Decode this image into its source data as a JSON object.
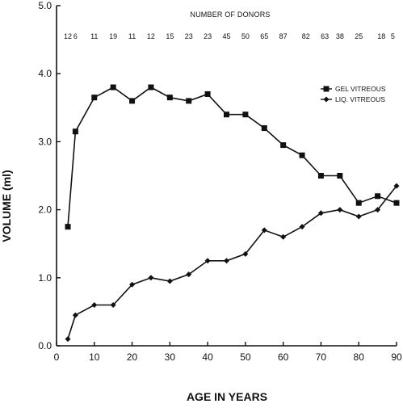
{
  "chart_data": {
    "type": "line",
    "xlabel": "AGE IN YEARS",
    "ylabel": "VOLUME (ml)",
    "xlim": [
      0,
      90
    ],
    "ylim": [
      0,
      5
    ],
    "xticks": [
      "0",
      "10",
      "20",
      "30",
      "40",
      "50",
      "60",
      "70",
      "80",
      "90"
    ],
    "yticks": [
      "0.0",
      "1.0",
      "2.0",
      "3.0",
      "4.0",
      "5.0"
    ],
    "grid": false,
    "legend_position": "right",
    "top_label": "NUMBER OF DONORS",
    "donors": [
      {
        "x": 3,
        "n": "12"
      },
      {
        "x": 5,
        "n": "6"
      },
      {
        "x": 10,
        "n": "11"
      },
      {
        "x": 15,
        "n": "19"
      },
      {
        "x": 20,
        "n": "11"
      },
      {
        "x": 25,
        "n": "12"
      },
      {
        "x": 30,
        "n": "15"
      },
      {
        "x": 35,
        "n": "23"
      },
      {
        "x": 40,
        "n": "23"
      },
      {
        "x": 45,
        "n": "45"
      },
      {
        "x": 50,
        "n": "50"
      },
      {
        "x": 55,
        "n": "65"
      },
      {
        "x": 60,
        "n": "87"
      },
      {
        "x": 66,
        "n": "82"
      },
      {
        "x": 71,
        "n": "63"
      },
      {
        "x": 75,
        "n": "38"
      },
      {
        "x": 80,
        "n": "25"
      },
      {
        "x": 86,
        "n": "18"
      },
      {
        "x": 89,
        "n": "5"
      }
    ],
    "series": [
      {
        "name": "GEL VITREOUS",
        "marker": "square",
        "points": [
          [
            3,
            1.75
          ],
          [
            5,
            3.15
          ],
          [
            10,
            3.65
          ],
          [
            15,
            3.8
          ],
          [
            20,
            3.6
          ],
          [
            25,
            3.8
          ],
          [
            30,
            3.65
          ],
          [
            35,
            3.6
          ],
          [
            40,
            3.7
          ],
          [
            45,
            3.4
          ],
          [
            50,
            3.4
          ],
          [
            55,
            3.2
          ],
          [
            60,
            2.95
          ],
          [
            65,
            2.8
          ],
          [
            70,
            2.5
          ],
          [
            75,
            2.5
          ],
          [
            80,
            2.1
          ],
          [
            85,
            2.2
          ],
          [
            90,
            2.1
          ]
        ]
      },
      {
        "name": "LIQ. VITREOUS",
        "marker": "diamond",
        "points": [
          [
            3,
            0.1
          ],
          [
            5,
            0.45
          ],
          [
            10,
            0.6
          ],
          [
            15,
            0.6
          ],
          [
            20,
            0.9
          ],
          [
            25,
            1.0
          ],
          [
            30,
            0.95
          ],
          [
            35,
            1.05
          ],
          [
            40,
            1.25
          ],
          [
            45,
            1.25
          ],
          [
            50,
            1.35
          ],
          [
            55,
            1.7
          ],
          [
            60,
            1.6
          ],
          [
            65,
            1.75
          ],
          [
            70,
            1.95
          ],
          [
            75,
            2.0
          ],
          [
            80,
            1.9
          ],
          [
            85,
            2.0
          ],
          [
            90,
            2.35
          ]
        ]
      }
    ]
  }
}
